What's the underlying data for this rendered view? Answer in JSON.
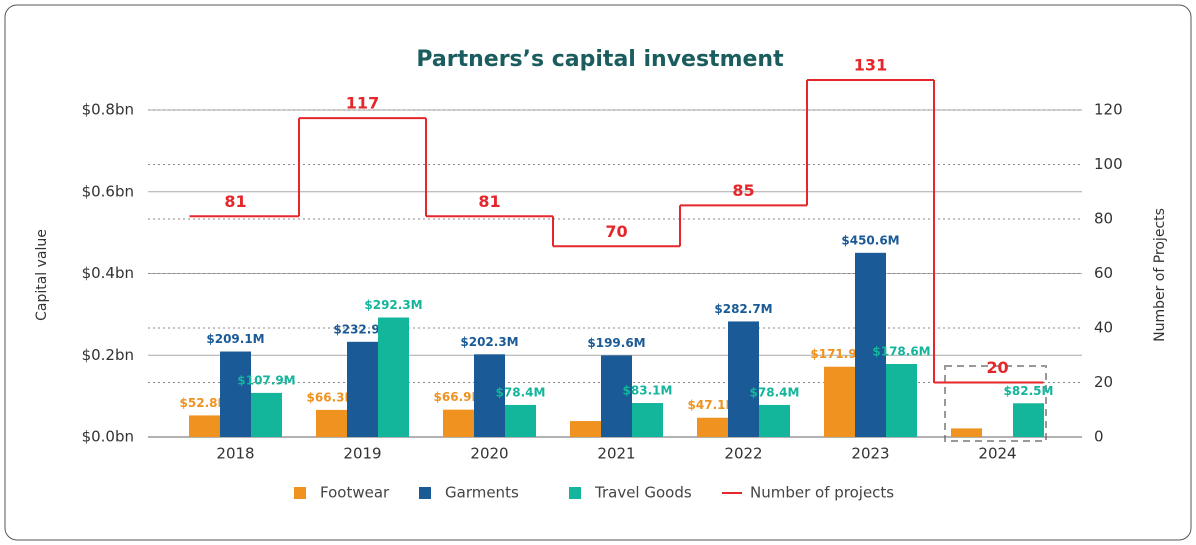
{
  "chart_data": {
    "type": "bar",
    "title": "Partners’s capital investment",
    "y_label": "Capital value",
    "y2_label": "Number of Projects",
    "categories": [
      "2018",
      "2019",
      "2020",
      "2021",
      "2022",
      "2023",
      "2024"
    ],
    "ylim": [
      0,
      0.8
    ],
    "yticks": [
      {
        "value": 0,
        "label": "$0.0bn"
      },
      {
        "value": 0.2,
        "label": "$0.2bn"
      },
      {
        "value": 0.4,
        "label": "$0.4bn"
      },
      {
        "value": 0.6,
        "label": "$0.6bn"
      },
      {
        "value": 0.8,
        "label": "$0.8bn"
      }
    ],
    "y2lim": [
      0,
      120
    ],
    "y2ticks": [
      0,
      20,
      40,
      60,
      80,
      100,
      120
    ],
    "grid": true,
    "legend": "bottom",
    "series": [
      {
        "name": "Footwear",
        "color": "#f0921f",
        "values": [
          0.0528,
          0.0663,
          0.0669,
          0.039,
          0.0471,
          0.1719,
          0.021
        ],
        "value_labels": [
          "$52.8M",
          "$66.3M",
          "$66.9M",
          null,
          "$47.1M",
          "$171.9M",
          null
        ]
      },
      {
        "name": "Garments",
        "color": "#1a5a96",
        "values": [
          0.2091,
          0.2329,
          0.2023,
          0.1996,
          0.2827,
          0.4506,
          null
        ],
        "value_labels": [
          "$209.1M",
          "$232.9M",
          "$202.3M",
          "$199.6M",
          "$282.7M",
          "$450.6M",
          null
        ]
      },
      {
        "name": "Travel Goods",
        "color": "#13b59b",
        "values": [
          0.1079,
          0.2923,
          0.0784,
          0.0831,
          0.0784,
          0.1786,
          0.0825
        ],
        "value_labels": [
          "$107.9M",
          "$292.3M",
          "$78.4M",
          "$83.1M",
          "$78.4M",
          "$178.6M",
          "$82.5M"
        ]
      },
      {
        "name": "Number of projects",
        "type": "line",
        "axis": "y2",
        "color": "#e5262b",
        "values": [
          81,
          117,
          81,
          70,
          85,
          131,
          20
        ]
      }
    ]
  }
}
